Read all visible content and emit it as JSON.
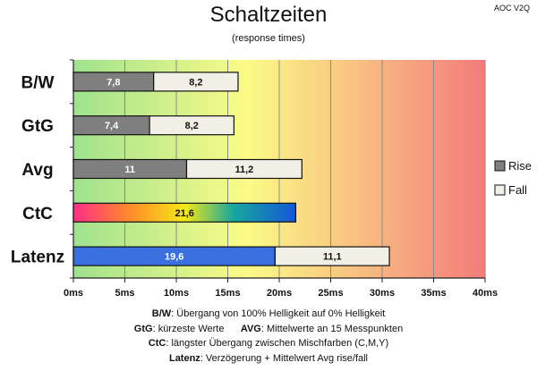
{
  "title": "Schaltzeiten",
  "subtitle": "(response times)",
  "corner_label": "AOC V2Q",
  "notes": [
    {
      "key": "B/W",
      "text": ":  Übergang von 100% Helligkeit auf 0% Helligkeit"
    },
    {
      "key": "GtG",
      "text": ": kürzeste  Werte",
      "key2": "AVG",
      "text2": ": Mittelwerte  an 15 Messpunkten"
    },
    {
      "key": "CtC",
      "text": ": längster Übergang  zwischen Mischfarben (C,M,Y)"
    },
    {
      "key": "Latenz",
      "text": ": Verzögerung  + Mittelwert Avg rise/fall"
    }
  ],
  "colors": {
    "rise": "#7f7f7f",
    "fall": "#f2f0e6",
    "latenz": "#3a6fe0",
    "gradient_green": "#9fe28f",
    "gradient_yellow": "#fbfb86",
    "gradient_red": "#f47b7b"
  },
  "chart_data": {
    "type": "bar",
    "orientation": "horizontal",
    "stacked": true,
    "categories": [
      "B/W",
      "GtG",
      "Avg",
      "CtC",
      "Latenz"
    ],
    "series": [
      {
        "name": "Rise",
        "values": [
          7.8,
          7.4,
          11,
          21.6,
          19.6
        ],
        "labels": [
          "7,8",
          "7,4",
          "11",
          "21,6",
          "19,6"
        ]
      },
      {
        "name": "Fall",
        "values": [
          8.2,
          8.2,
          11.2,
          null,
          11.1
        ],
        "labels": [
          "8,2",
          "8,2",
          "11,2",
          "",
          "11,1"
        ]
      }
    ],
    "xlim": [
      0,
      40
    ],
    "xticks": [
      0,
      5,
      10,
      15,
      20,
      25,
      30,
      35,
      40
    ],
    "xtick_labels": [
      "0ms",
      "5ms",
      "10ms",
      "15ms",
      "20ms",
      "25ms",
      "30ms",
      "35ms",
      "40ms"
    ],
    "xlabel": "",
    "ylabel": "",
    "grid": true,
    "legend_position": "right",
    "background": "gradient green-yellow-red"
  }
}
